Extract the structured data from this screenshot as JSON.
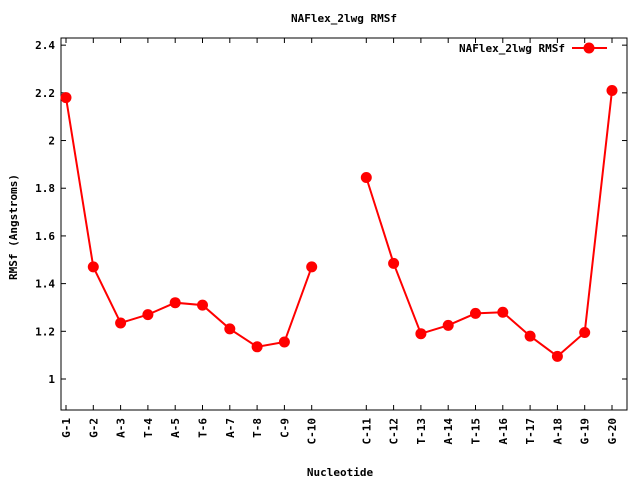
{
  "chart_data": {
    "type": "line",
    "title": "NAFlex_2lwg RMSf",
    "xlabel": "Nucleotide",
    "ylabel": "RMSf (Angstroms)",
    "categories": [
      "G-1",
      "G-2",
      "A-3",
      "T-4",
      "A-5",
      "T-6",
      "A-7",
      "T-8",
      "C-9",
      "C-10",
      "C-11",
      "C-12",
      "T-13",
      "A-14",
      "T-15",
      "A-16",
      "T-17",
      "A-18",
      "G-19",
      "G-20"
    ],
    "series": [
      {
        "name": "NAFlex_2lwg RMSf",
        "color": "#ff0000",
        "segments": [
          {
            "indices": [
              0,
              1,
              2,
              3,
              4,
              5,
              6,
              7,
              8,
              9
            ],
            "values": [
              2.18,
              1.47,
              1.235,
              1.27,
              1.32,
              1.31,
              1.21,
              1.135,
              1.155,
              1.47
            ]
          },
          {
            "indices": [
              10,
              11,
              12,
              13,
              14,
              15,
              16,
              17,
              18,
              19
            ],
            "values": [
              1.845,
              1.485,
              1.19,
              1.225,
              1.275,
              1.28,
              1.18,
              1.095,
              1.195,
              2.21
            ]
          }
        ]
      }
    ],
    "yticks": [
      "1",
      "1.2",
      "1.4",
      "1.6",
      "1.8",
      "2",
      "2.2",
      "2.4"
    ],
    "ylim": [
      0.87,
      2.43
    ],
    "grid": false,
    "legend": "top-right"
  }
}
